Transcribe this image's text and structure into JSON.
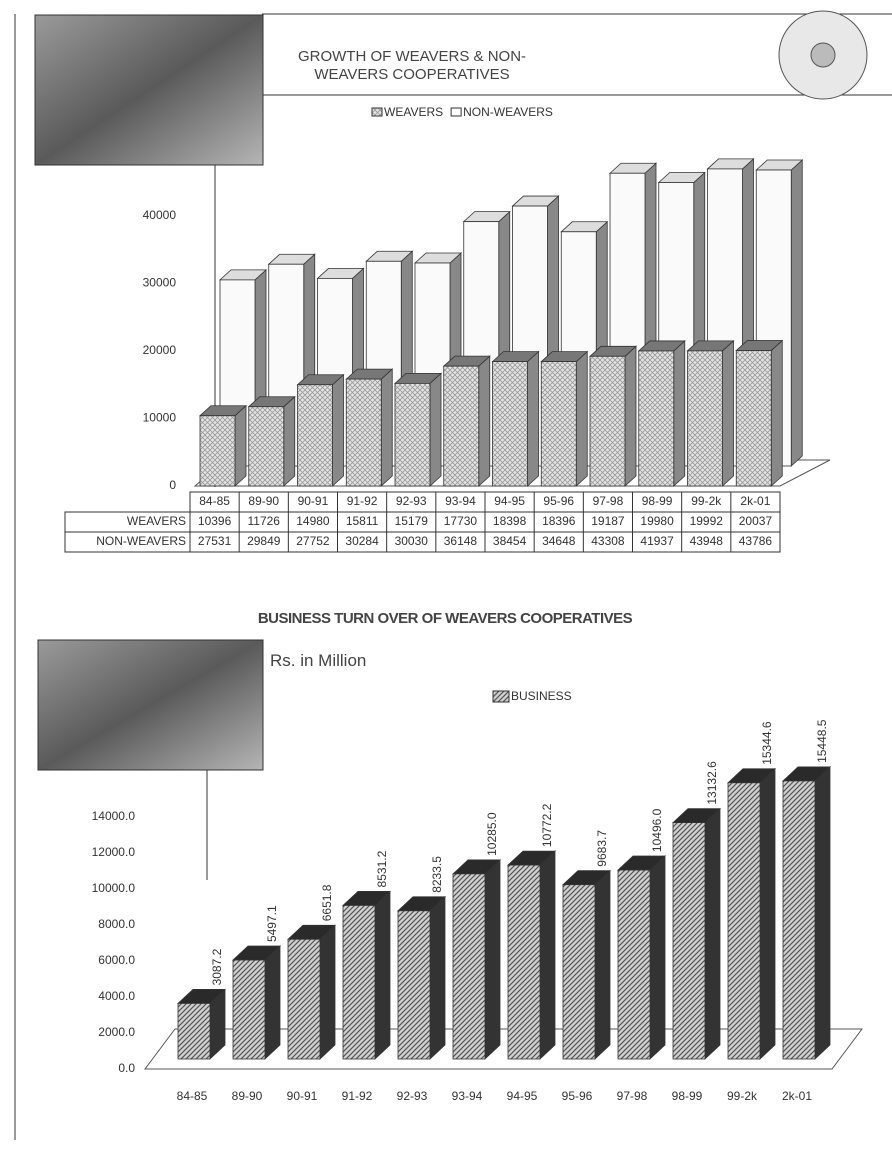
{
  "chart_data": [
    {
      "type": "bar3d",
      "title": "GROWTH OF WEAVERS & NON-WEAVERS COOPERATIVES",
      "categories": [
        "84-85",
        "89-90",
        "90-91",
        "91-92",
        "92-93",
        "93-94",
        "94-95",
        "95-96",
        "97-98",
        "98-99",
        "99-2k",
        "2k-01"
      ],
      "series": [
        {
          "name": "WEAVERS",
          "color": "#d8d8d8",
          "values": [
            10396,
            11726,
            14980,
            15811,
            15179,
            17730,
            18398,
            18396,
            19187,
            19980,
            19992,
            20037
          ]
        },
        {
          "name": "NON-WEAVERS",
          "color": "#f6f6f6",
          "values": [
            27531,
            29849,
            27752,
            30284,
            30030,
            36148,
            38454,
            34648,
            43308,
            41937,
            43948,
            43786
          ]
        }
      ],
      "ylim": [
        0,
        50000
      ],
      "yticks": [
        0,
        10000,
        20000,
        30000,
        40000
      ]
    },
    {
      "type": "bar3d",
      "title": "BUSINESS TURN OVER OF WEAVERS COOPERATIVES",
      "subtitle": "Rs. in Million",
      "categories": [
        "84-85",
        "89-90",
        "90-91",
        "91-92",
        "92-93",
        "93-94",
        "94-95",
        "95-96",
        "97-98",
        "98-99",
        "99-2k",
        "2k-01"
      ],
      "series": [
        {
          "name": "BUSINESS",
          "color": "#bdbdbd",
          "values": [
            3087.2,
            5497.1,
            6651.8,
            8531.2,
            8233.5,
            10285,
            10772.2,
            9683.7,
            10496,
            13132.6,
            15344.6,
            15448.5
          ],
          "value_labels": [
            "3087.2",
            "5497.1",
            "6651.8",
            "8531.2",
            "8233.5",
            "10285.0",
            "10772.2",
            "9683.7",
            "10496.0",
            "13132.6",
            "15344.6",
            "15448.5"
          ]
        }
      ],
      "ylim": [
        0,
        16000
      ],
      "yticks": [
        {
          "value": 0,
          "label": "0.0"
        },
        {
          "value": 2000,
          "label": "2000.0"
        },
        {
          "value": 4000,
          "label": "4000.0"
        },
        {
          "value": 6000,
          "label": "6000.0"
        },
        {
          "value": 8000,
          "label": "8000.0"
        },
        {
          "value": 10000,
          "label": "10000.0"
        },
        {
          "value": 12000,
          "label": "12000.0"
        },
        {
          "value": 14000,
          "label": "14000.0"
        }
      ]
    }
  ]
}
